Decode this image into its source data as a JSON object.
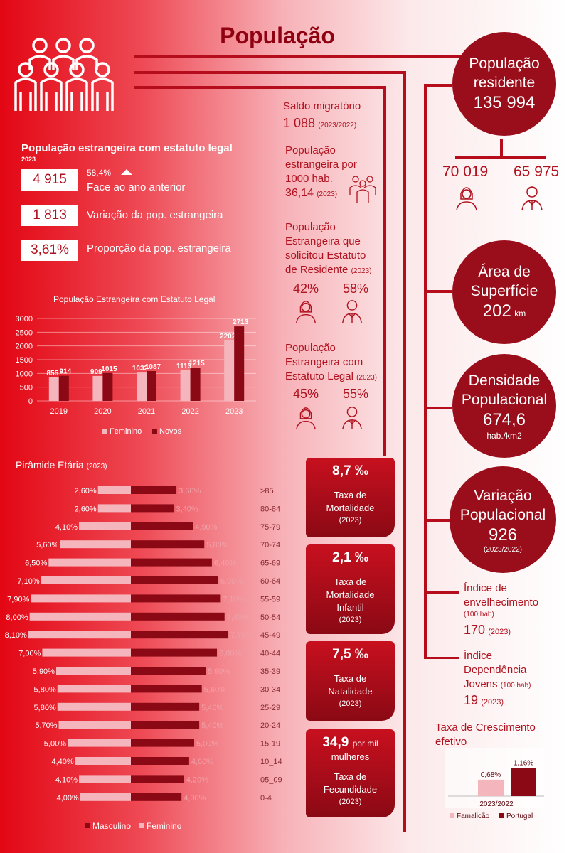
{
  "title": "População",
  "circles": {
    "pop_res": {
      "label1": "População",
      "label2": "residente",
      "value": "135 994"
    },
    "area": {
      "label1": "Área de",
      "label2": "Superfície",
      "value": "202",
      "unit": "km"
    },
    "dens": {
      "label1": "Densidade",
      "label2": "Populacional",
      "value": "674,6",
      "unit": "hab./km2"
    },
    "var": {
      "label1": "Variação",
      "label2": "Populacional",
      "value": "926",
      "year": "(2023/2022)"
    }
  },
  "gender_split": {
    "female": "70 019",
    "male": "65 975"
  },
  "foreign": {
    "title": "População estrangeira com estatuto legal",
    "year": "2023",
    "stats": [
      {
        "value": "4 915",
        "label": "Face ao ano anterior",
        "pct": "58,4%"
      },
      {
        "value": "1 813",
        "label": "Variação da pop. estrangeira"
      },
      {
        "value": "3,61%",
        "label": "Proporção da pop. estrangeira"
      }
    ]
  },
  "middle": {
    "saldo_label": "Saldo migratório",
    "saldo_value": "1 088",
    "saldo_year": "(2023/2022)",
    "per1000_l1": "População",
    "per1000_l2": "estrangeira por",
    "per1000_l3": "1000 hab.",
    "per1000_value": "36,14",
    "per1000_year": "(2023)",
    "residente_l1": "População",
    "residente_l2": "Estrangeira que",
    "residente_l3": "solicitou Estatuto",
    "residente_l4": "de Residente",
    "residente_year": "(2023)",
    "residente_f": "42%",
    "residente_m": "58%",
    "legal_l1": "População",
    "legal_l2": "Estrangeira com",
    "legal_l3": "Estatuto Legal",
    "legal_year": "(2023)",
    "legal_f": "45%",
    "legal_m": "55%"
  },
  "cards": [
    {
      "big": "8,7 ‰",
      "l1": "Taxa de",
      "l2": "Mortalidade",
      "l3": "",
      "yr": "(2023)"
    },
    {
      "big": "2,1 ‰",
      "l1": "Taxa de",
      "l2": "Mortalidade",
      "l3": "Infantil",
      "yr": "(2023)"
    },
    {
      "big": "7,5 ‰",
      "l1": "Taxa de",
      "l2": "Natalidade",
      "l3": "",
      "yr": "(2023)"
    },
    {
      "big": "34,9",
      "big_suffix": "por mil",
      "sub": "mulheres",
      "l1": "Taxa de",
      "l2": "Fecundidade",
      "yr": "(2023)"
    }
  ],
  "right_info": {
    "env_l1": "Índice de",
    "env_l2": "envelhecimento",
    "env_sub": "(100 hab)",
    "env_value": "170",
    "env_year": "(2023)",
    "dep_l1": "Índice",
    "dep_l2": "Dependência",
    "dep_l3": "Jovens",
    "dep_sub": "(100 hab)",
    "dep_value": "19",
    "dep_year": "(2023)"
  },
  "chart_data": [
    {
      "type": "bar",
      "title": "População Estrangeira com Estatuto Legal",
      "categories": [
        "2019",
        "2020",
        "2021",
        "2022",
        "2023"
      ],
      "series": [
        {
          "name": "Feminino",
          "values": [
            855,
            909,
            1032,
            1113,
            2202
          ]
        },
        {
          "name": "Novos",
          "values": [
            914,
            1015,
            1087,
            1215,
            2713
          ]
        }
      ],
      "ylim": [
        0,
        3000
      ],
      "yticks": [
        "0",
        "500",
        "1000",
        "1500",
        "2000",
        "2500",
        "3000"
      ],
      "legend": "bottom",
      "colors": {
        "Feminino": "#f4b5bc",
        "Novos": "#8a0914"
      }
    },
    {
      "type": "bar",
      "title": "Pirâmide Etária",
      "title_year": "(2023)",
      "categories": [
        ">85",
        "80-84",
        "75-79",
        "70-74",
        "65-69",
        "60-64",
        "55-59",
        "50-54",
        "45-49",
        "40-44",
        "35-39",
        "30-34",
        "25-29",
        "20-24",
        "15-19",
        "10_14",
        "05_09",
        "0-4"
      ],
      "series": [
        {
          "name": "Masculino",
          "values": [
            3.6,
            3.4,
            4.9,
            5.8,
            6.4,
            6.9,
            7.1,
            7.4,
            7.7,
            6.8,
            5.9,
            5.6,
            5.4,
            5.4,
            5.0,
            4.6,
            4.2,
            4.0
          ],
          "labels": [
            "3,60%",
            "3,40%",
            "4,90%",
            "5,80%",
            "6,40%",
            "6,90%",
            "7,10%",
            "7,40%",
            "7,70%",
            "6,80%",
            "5,90%",
            "5,60%",
            "5,40%",
            "5,40%",
            "5,00%",
            "4,60%",
            "4,20%",
            "4,00%"
          ]
        },
        {
          "name": "Feminino",
          "values": [
            2.6,
            2.6,
            4.1,
            5.6,
            6.5,
            7.1,
            7.9,
            8.0,
            8.1,
            7.0,
            5.9,
            5.8,
            5.8,
            5.7,
            5.0,
            4.4,
            4.1,
            4.0
          ],
          "labels": [
            "2,60%",
            "2,60%",
            "4,10%",
            "5,60%",
            "6,50%",
            "7,10%",
            "7,90%",
            "8,00%",
            "8,10%",
            "7,00%",
            "5,90%",
            "5,80%",
            "5,80%",
            "5,70%",
            "5,00%",
            "4,40%",
            "4,10%",
            "4,00%"
          ]
        }
      ],
      "legend": "bottom",
      "colors": {
        "Masculino": "#8a0914",
        "Feminino": "#f4b5bc"
      }
    },
    {
      "type": "bar",
      "title": "Taxa de Crescimento efetivo",
      "categories": [
        "2023/2022"
      ],
      "series": [
        {
          "name": "Famalicão",
          "values": [
            0.68
          ],
          "labels": [
            "0,68%"
          ]
        },
        {
          "name": "Portugal",
          "values": [
            1.16
          ],
          "labels": [
            "1,16%"
          ]
        }
      ],
      "legend": "bottom",
      "colors": {
        "Famalicão": "#f4b5bc",
        "Portugal": "#8a0914"
      }
    }
  ]
}
